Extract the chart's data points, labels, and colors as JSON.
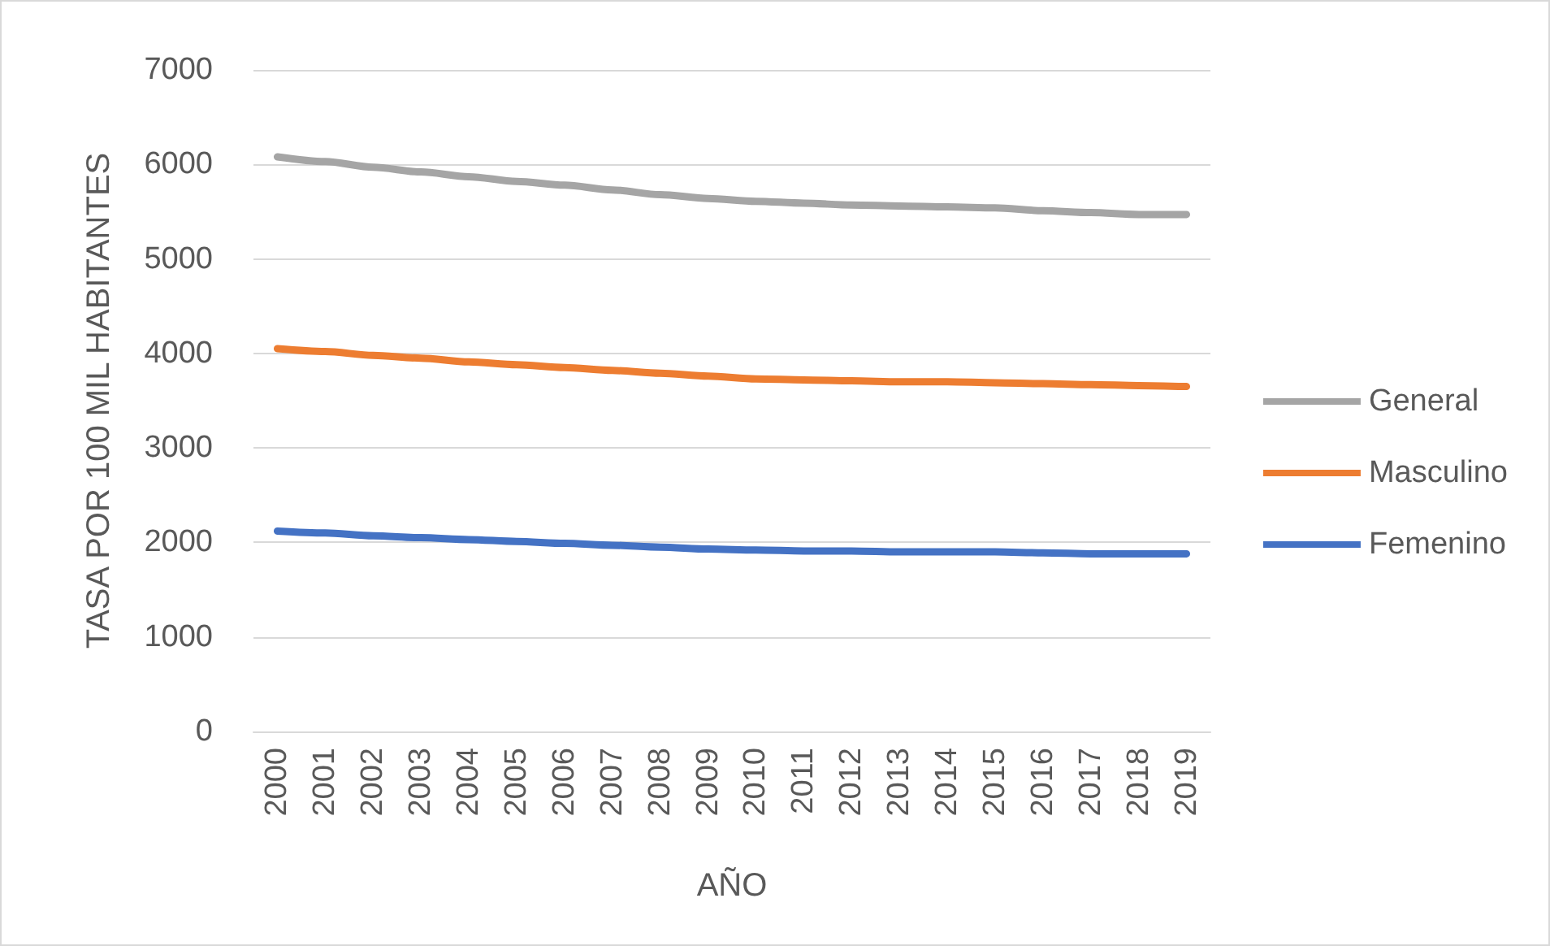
{
  "chart_data": {
    "type": "line",
    "xlabel": "AÑO",
    "ylabel": "TASA POR 100 MIL HABITANTES",
    "categories": [
      "2000",
      "2001",
      "2002",
      "2003",
      "2004",
      "2005",
      "2006",
      "2007",
      "2008",
      "2009",
      "2010",
      "2011",
      "2012",
      "2013",
      "2014",
      "2015",
      "2016",
      "2017",
      "2018",
      "2019"
    ],
    "series": [
      {
        "name": "General",
        "color": "#a5a5a5",
        "values": [
          6080,
          6030,
          5970,
          5920,
          5870,
          5820,
          5780,
          5730,
          5680,
          5640,
          5610,
          5590,
          5570,
          5560,
          5550,
          5540,
          5510,
          5490,
          5470,
          5470
        ]
      },
      {
        "name": "Masculino",
        "color": "#ed7d31",
        "values": [
          4050,
          4020,
          3980,
          3950,
          3910,
          3880,
          3850,
          3820,
          3790,
          3760,
          3730,
          3720,
          3710,
          3700,
          3700,
          3690,
          3680,
          3670,
          3660,
          3650
        ]
      },
      {
        "name": "Femenino",
        "color": "#4472c4",
        "values": [
          2120,
          2100,
          2070,
          2050,
          2030,
          2010,
          1990,
          1970,
          1950,
          1930,
          1920,
          1910,
          1910,
          1900,
          1900,
          1900,
          1890,
          1880,
          1880,
          1880
        ]
      }
    ],
    "ylim": [
      0,
      7000
    ],
    "yticks": [
      0,
      1000,
      2000,
      3000,
      4000,
      5000,
      6000,
      7000
    ],
    "grid": "y",
    "legend": "right",
    "marker": "none",
    "line_style": "solid"
  }
}
